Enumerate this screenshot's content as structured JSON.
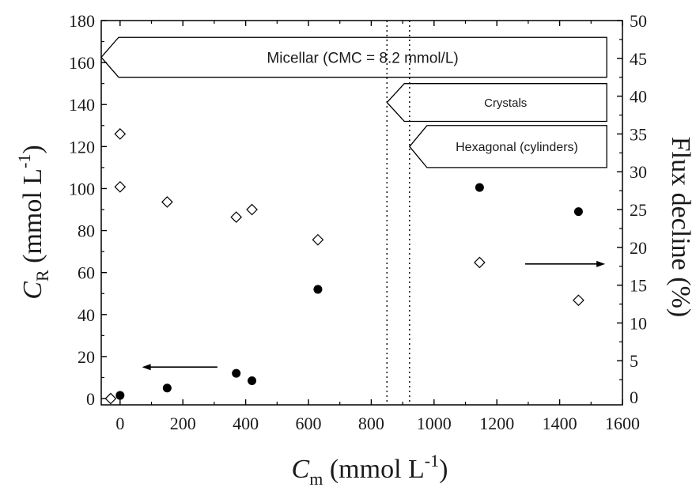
{
  "chart_data": {
    "type": "scatter",
    "x_axis": {
      "label_main": "C",
      "label_sub": "m",
      "label_unit_pre": " (mmol L",
      "label_sup": "-1",
      "label_unit_post": ")",
      "range": [
        -60,
        1600
      ],
      "ticks": [
        0,
        200,
        400,
        600,
        800,
        1000,
        1200,
        1400,
        1600
      ]
    },
    "y_left": {
      "label_main": "C",
      "label_sub": "R",
      "label_unit_pre": " (mmol L",
      "label_sup": "-1",
      "label_unit_post": ")",
      "range": [
        -3,
        180
      ],
      "ticks": [
        0,
        20,
        40,
        60,
        80,
        100,
        120,
        140,
        160,
        180
      ]
    },
    "y_right": {
      "label": "Flux decline (%)",
      "range": [
        -0.833,
        50
      ],
      "ticks": [
        5,
        10,
        15,
        20,
        25,
        30,
        35,
        40,
        45,
        50
      ],
      "zero_label": "0"
    },
    "series": [
      {
        "axis": "left",
        "marker": "filled-circle",
        "color": "#000000",
        "x": [
          0,
          150,
          370,
          420,
          630,
          1145,
          1460
        ],
        "y": [
          1.5,
          5,
          12,
          8.5,
          52,
          100.5,
          89
        ]
      },
      {
        "axis": "right",
        "marker": "open-diamond",
        "color": "#000000",
        "x": [
          -30,
          0,
          0,
          150,
          370,
          420,
          630,
          1145,
          1460
        ],
        "y": [
          0,
          28,
          35,
          26,
          24,
          25,
          21,
          18,
          13
        ]
      }
    ],
    "phase_boundaries": [
      850,
      922
    ],
    "phases": [
      {
        "label": "Micellar (CMC = 8.2 mmol/L)",
        "x_start": -60,
        "x_end": 1550,
        "y_top": 172,
        "y_bottom": 153
      },
      {
        "label": "Crystals",
        "x_start": 850,
        "x_end": 1550,
        "y_top": 150,
        "y_bottom": 132
      },
      {
        "label": "Hexagonal (cylinders)",
        "x_start": 922,
        "x_end": 1550,
        "y_top": 130,
        "y_bottom": 110
      }
    ],
    "arrows": [
      {
        "from": [
          310,
          15
        ],
        "to": [
          70,
          15
        ],
        "axis": "left"
      },
      {
        "from": [
          1290,
          17.8
        ],
        "to": [
          1545,
          17.8
        ],
        "axis": "right"
      }
    ],
    "grid": false,
    "legend": "none"
  }
}
